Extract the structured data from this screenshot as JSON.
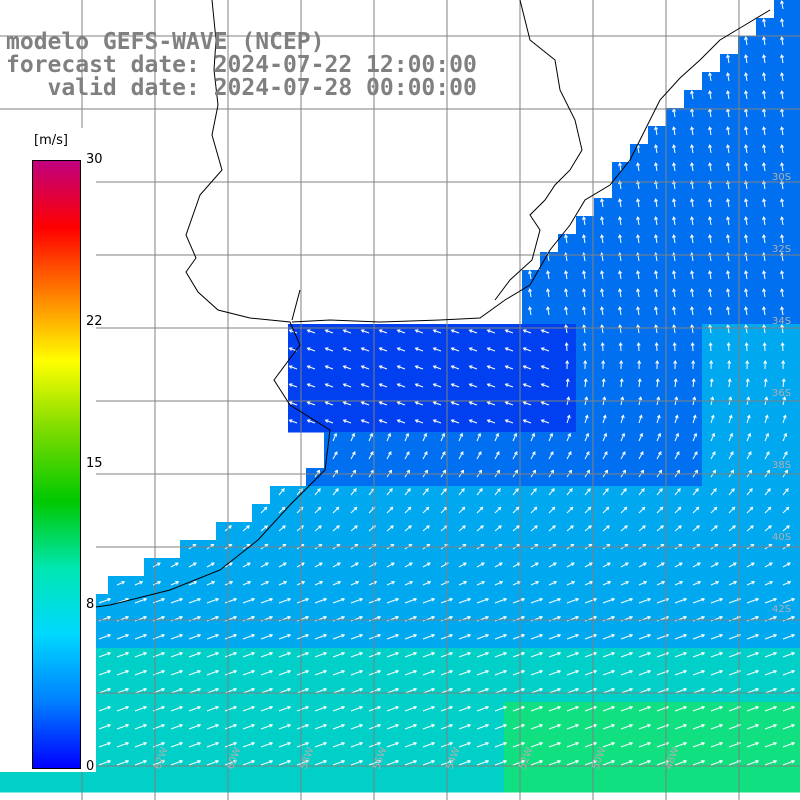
{
  "title": {
    "line1": "modelo GEFS-WAVE (NCEP)",
    "line2": "forecast date: 2024-07-22 12:00:00",
    "line3": "   valid date: 2024-07-28 00:00:00"
  },
  "colorbar": {
    "unit": "[m/s]",
    "min": 0,
    "max": 30,
    "ticks": [
      "30",
      "22",
      "15",
      "8",
      "0"
    ],
    "tick_values": [
      30,
      22,
      15,
      8,
      0
    ],
    "colors": [
      "#0000ff",
      "#0080ff",
      "#00d8ff",
      "#00e6b0",
      "#00c800",
      "#80dc00",
      "#ffff00",
      "#ff8000",
      "#ff0000",
      "#c0007f"
    ]
  },
  "map": {
    "grid_color": "#808080",
    "coastline_color": "#000000",
    "lat_labels": [
      "30S",
      "32S",
      "34S",
      "36S",
      "38S",
      "40S",
      "42S"
    ],
    "lon_labels": [
      "66W",
      "64W",
      "62W",
      "60W",
      "58W",
      "56W",
      "54W",
      "52W",
      "50W",
      "48W"
    ],
    "field_description_colors": {
      "inner_estuary": "#0040f0",
      "coastal": "#0070f0",
      "offshore": "#00a8f0",
      "south": "#00d0c8",
      "far_south": "#10e080"
    }
  }
}
